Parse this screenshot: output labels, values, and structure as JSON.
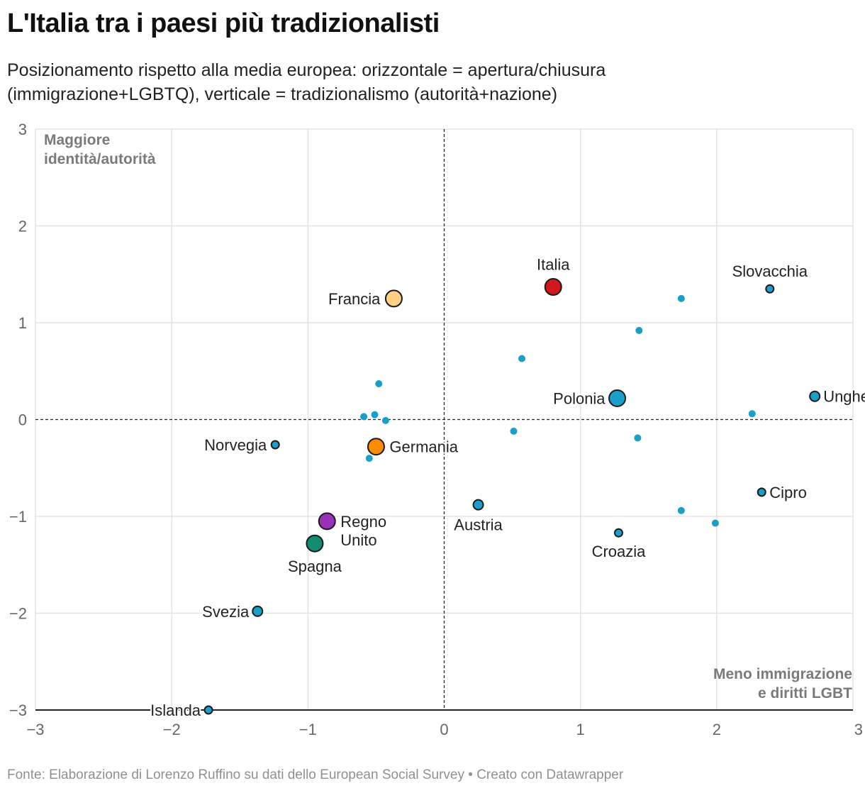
{
  "title": "L'Italia tra i paesi più tradizionalisti",
  "subtitle": "Posizionamento rispetto alla media europea: orizzontale = apertura/chiusura (immigrazione+LGBTQ), verticale = tradizionalismo (autorità+nazione)",
  "footer": "Fonte: Elaborazione di Lorenzo Ruffino su dati dello European Social Survey • Creato con Datawrapper",
  "colors": {
    "default": "#1a9fcb",
    "italia": "#d0191c",
    "francia": "#fdd283",
    "germania": "#fb8c00",
    "regno_unito": "#9b30b8",
    "spagna": "#138a72",
    "grid": "#e3e3e3",
    "axis": "#222222",
    "tick": "#666666",
    "annotation": "#7a7a7a"
  },
  "chart_data": {
    "type": "scatter",
    "title": "L'Italia tra i paesi più tradizionalisti",
    "xlabel": "apertura/chiusura (immigrazione+LGBTQ)",
    "ylabel": "tradizionalismo (autorità+nazione)",
    "xlim": [
      -3,
      3
    ],
    "ylim": [
      -3,
      3
    ],
    "x_ticks": [
      "−3",
      "−2",
      "−1",
      "0",
      "1",
      "2",
      "3"
    ],
    "y_ticks": [
      "3",
      "2",
      "1",
      "0",
      "−1",
      "−2",
      "−3"
    ],
    "grid": true,
    "annotations": {
      "top_left": [
        "Maggiore",
        "identità/autorità"
      ],
      "bottom_right": [
        "Meno immigrazione",
        "e diritti LGBT"
      ]
    },
    "points": [
      {
        "label": "Italia",
        "x": 0.8,
        "y": 1.37,
        "size": "large",
        "color": "italia"
      },
      {
        "label": "Francia",
        "x": -0.37,
        "y": 1.25,
        "size": "large",
        "color": "francia"
      },
      {
        "label": "Germania",
        "x": -0.5,
        "y": -0.28,
        "size": "large",
        "color": "germania"
      },
      {
        "label": "Regno Unito",
        "x": -0.86,
        "y": -1.05,
        "size": "large",
        "color": "regno_unito"
      },
      {
        "label": "Spagna",
        "x": -0.95,
        "y": -1.28,
        "size": "large",
        "color": "spagna"
      },
      {
        "label": "Polonia",
        "x": 1.27,
        "y": 0.22,
        "size": "large",
        "color": "default"
      },
      {
        "label": "Slovacchia",
        "x": 2.39,
        "y": 1.35,
        "size": "small",
        "color": "default"
      },
      {
        "label": "Ungheria",
        "x": 2.72,
        "y": 0.24,
        "size": "medium",
        "color": "default"
      },
      {
        "label": "Cipro",
        "x": 2.33,
        "y": -0.75,
        "size": "small",
        "color": "default"
      },
      {
        "label": "Croazia",
        "x": 1.28,
        "y": -1.17,
        "size": "small",
        "color": "default"
      },
      {
        "label": "Austria",
        "x": 0.25,
        "y": -0.88,
        "size": "medium",
        "color": "default"
      },
      {
        "label": "Norvegia",
        "x": -1.24,
        "y": -0.26,
        "size": "small",
        "color": "default"
      },
      {
        "label": "Svezia",
        "x": -1.37,
        "y": -1.98,
        "size": "medium",
        "color": "default"
      },
      {
        "label": "Islanda",
        "x": -1.73,
        "y": -3.0,
        "size": "small",
        "color": "default"
      },
      {
        "label": "",
        "x": 1.74,
        "y": 1.25,
        "size": "dot",
        "color": "default"
      },
      {
        "label": "",
        "x": 1.43,
        "y": 0.92,
        "size": "dot",
        "color": "default"
      },
      {
        "label": "",
        "x": 0.57,
        "y": 0.63,
        "size": "dot",
        "color": "default"
      },
      {
        "label": "",
        "x": 2.26,
        "y": 0.06,
        "size": "dot",
        "color": "default"
      },
      {
        "label": "",
        "x": 0.51,
        "y": -0.12,
        "size": "dot",
        "color": "default"
      },
      {
        "label": "",
        "x": 1.42,
        "y": -0.19,
        "size": "dot",
        "color": "default"
      },
      {
        "label": "",
        "x": 1.74,
        "y": -0.94,
        "size": "dot",
        "color": "default"
      },
      {
        "label": "",
        "x": 1.99,
        "y": -1.07,
        "size": "dot",
        "color": "default"
      },
      {
        "label": "",
        "x": -0.48,
        "y": 0.37,
        "size": "dot",
        "color": "default"
      },
      {
        "label": "",
        "x": -0.59,
        "y": 0.03,
        "size": "dot",
        "color": "default"
      },
      {
        "label": "",
        "x": -0.51,
        "y": 0.05,
        "size": "dot",
        "color": "default"
      },
      {
        "label": "",
        "x": -0.43,
        "y": -0.01,
        "size": "dot",
        "color": "default"
      },
      {
        "label": "",
        "x": -0.55,
        "y": -0.4,
        "size": "dot",
        "color": "default"
      }
    ]
  }
}
